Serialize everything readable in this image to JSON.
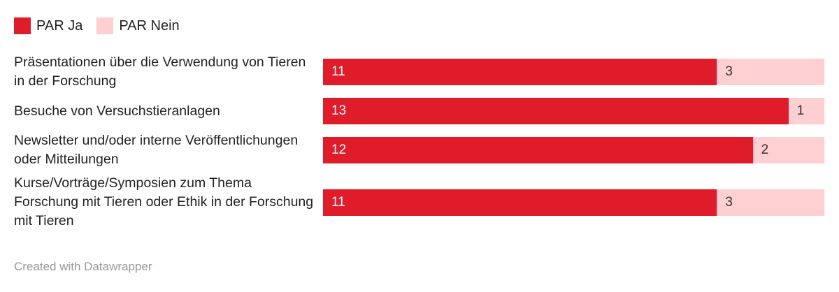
{
  "chart_data": {
    "type": "stacked-bar-horizontal",
    "categories": [
      "Präsentationen über die Verwendung von Tieren in der Forschung",
      "Besuche von Versuchstieranlagen",
      "Newsletter und/oder interne Veröffentlichungen oder Mitteilungen",
      "Kurse/Vorträge/Symposien zum Thema Forschung mit Tieren oder Ethik in der Forschung mit Tieren"
    ],
    "series": [
      {
        "name": "PAR Ja",
        "color": "#e01c2a",
        "values": [
          11,
          13,
          12,
          11
        ]
      },
      {
        "name": "PAR Nein",
        "color": "#ffd0d2",
        "values": [
          3,
          1,
          2,
          3
        ]
      }
    ],
    "xlim": [
      0,
      14
    ],
    "legend": "top-left",
    "source": "Created with Datawrapper"
  }
}
